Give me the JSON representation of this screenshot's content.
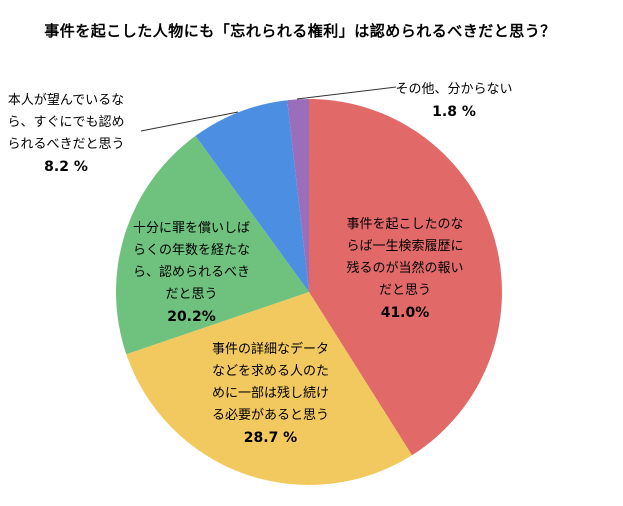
{
  "chart_data": {
    "type": "pie",
    "title": "事件を起こした人物にも「忘れられる権利」は認められるべきだと思う？",
    "legend": "none",
    "labels_on_chart": true,
    "start_angle_deg": 0,
    "direction": "clockwise",
    "slices": [
      {
        "label": "事件を起こしたのならば一生検索履歴に残るのが当然の報いだと思う",
        "pct_label": "41.0%",
        "value": 41.0,
        "color": "#E16A68",
        "label_placement": "inside"
      },
      {
        "label": "事件の詳細なデータなどを求める人のために一部は残し続ける必要があると思う",
        "pct_label": "28.7 %",
        "value": 28.7,
        "color": "#F2C95E",
        "label_placement": "inside"
      },
      {
        "label": "十分に罪を償いしばらくの年数を経たなら、認められるべきだと思う",
        "pct_label": "20.2%",
        "value": 20.2,
        "color": "#6EC27E",
        "label_placement": "inside"
      },
      {
        "label": "本人が望んでいるなら、すぐにでも認められるべきだと思う",
        "pct_label": "8.2 %",
        "value": 8.2,
        "color": "#4C8FE2",
        "label_placement": "outside-left"
      },
      {
        "label": "その他、分からない",
        "pct_label": "1.8 %",
        "value": 1.8,
        "color": "#9A6EBB",
        "label_placement": "outside-top-right"
      }
    ]
  }
}
